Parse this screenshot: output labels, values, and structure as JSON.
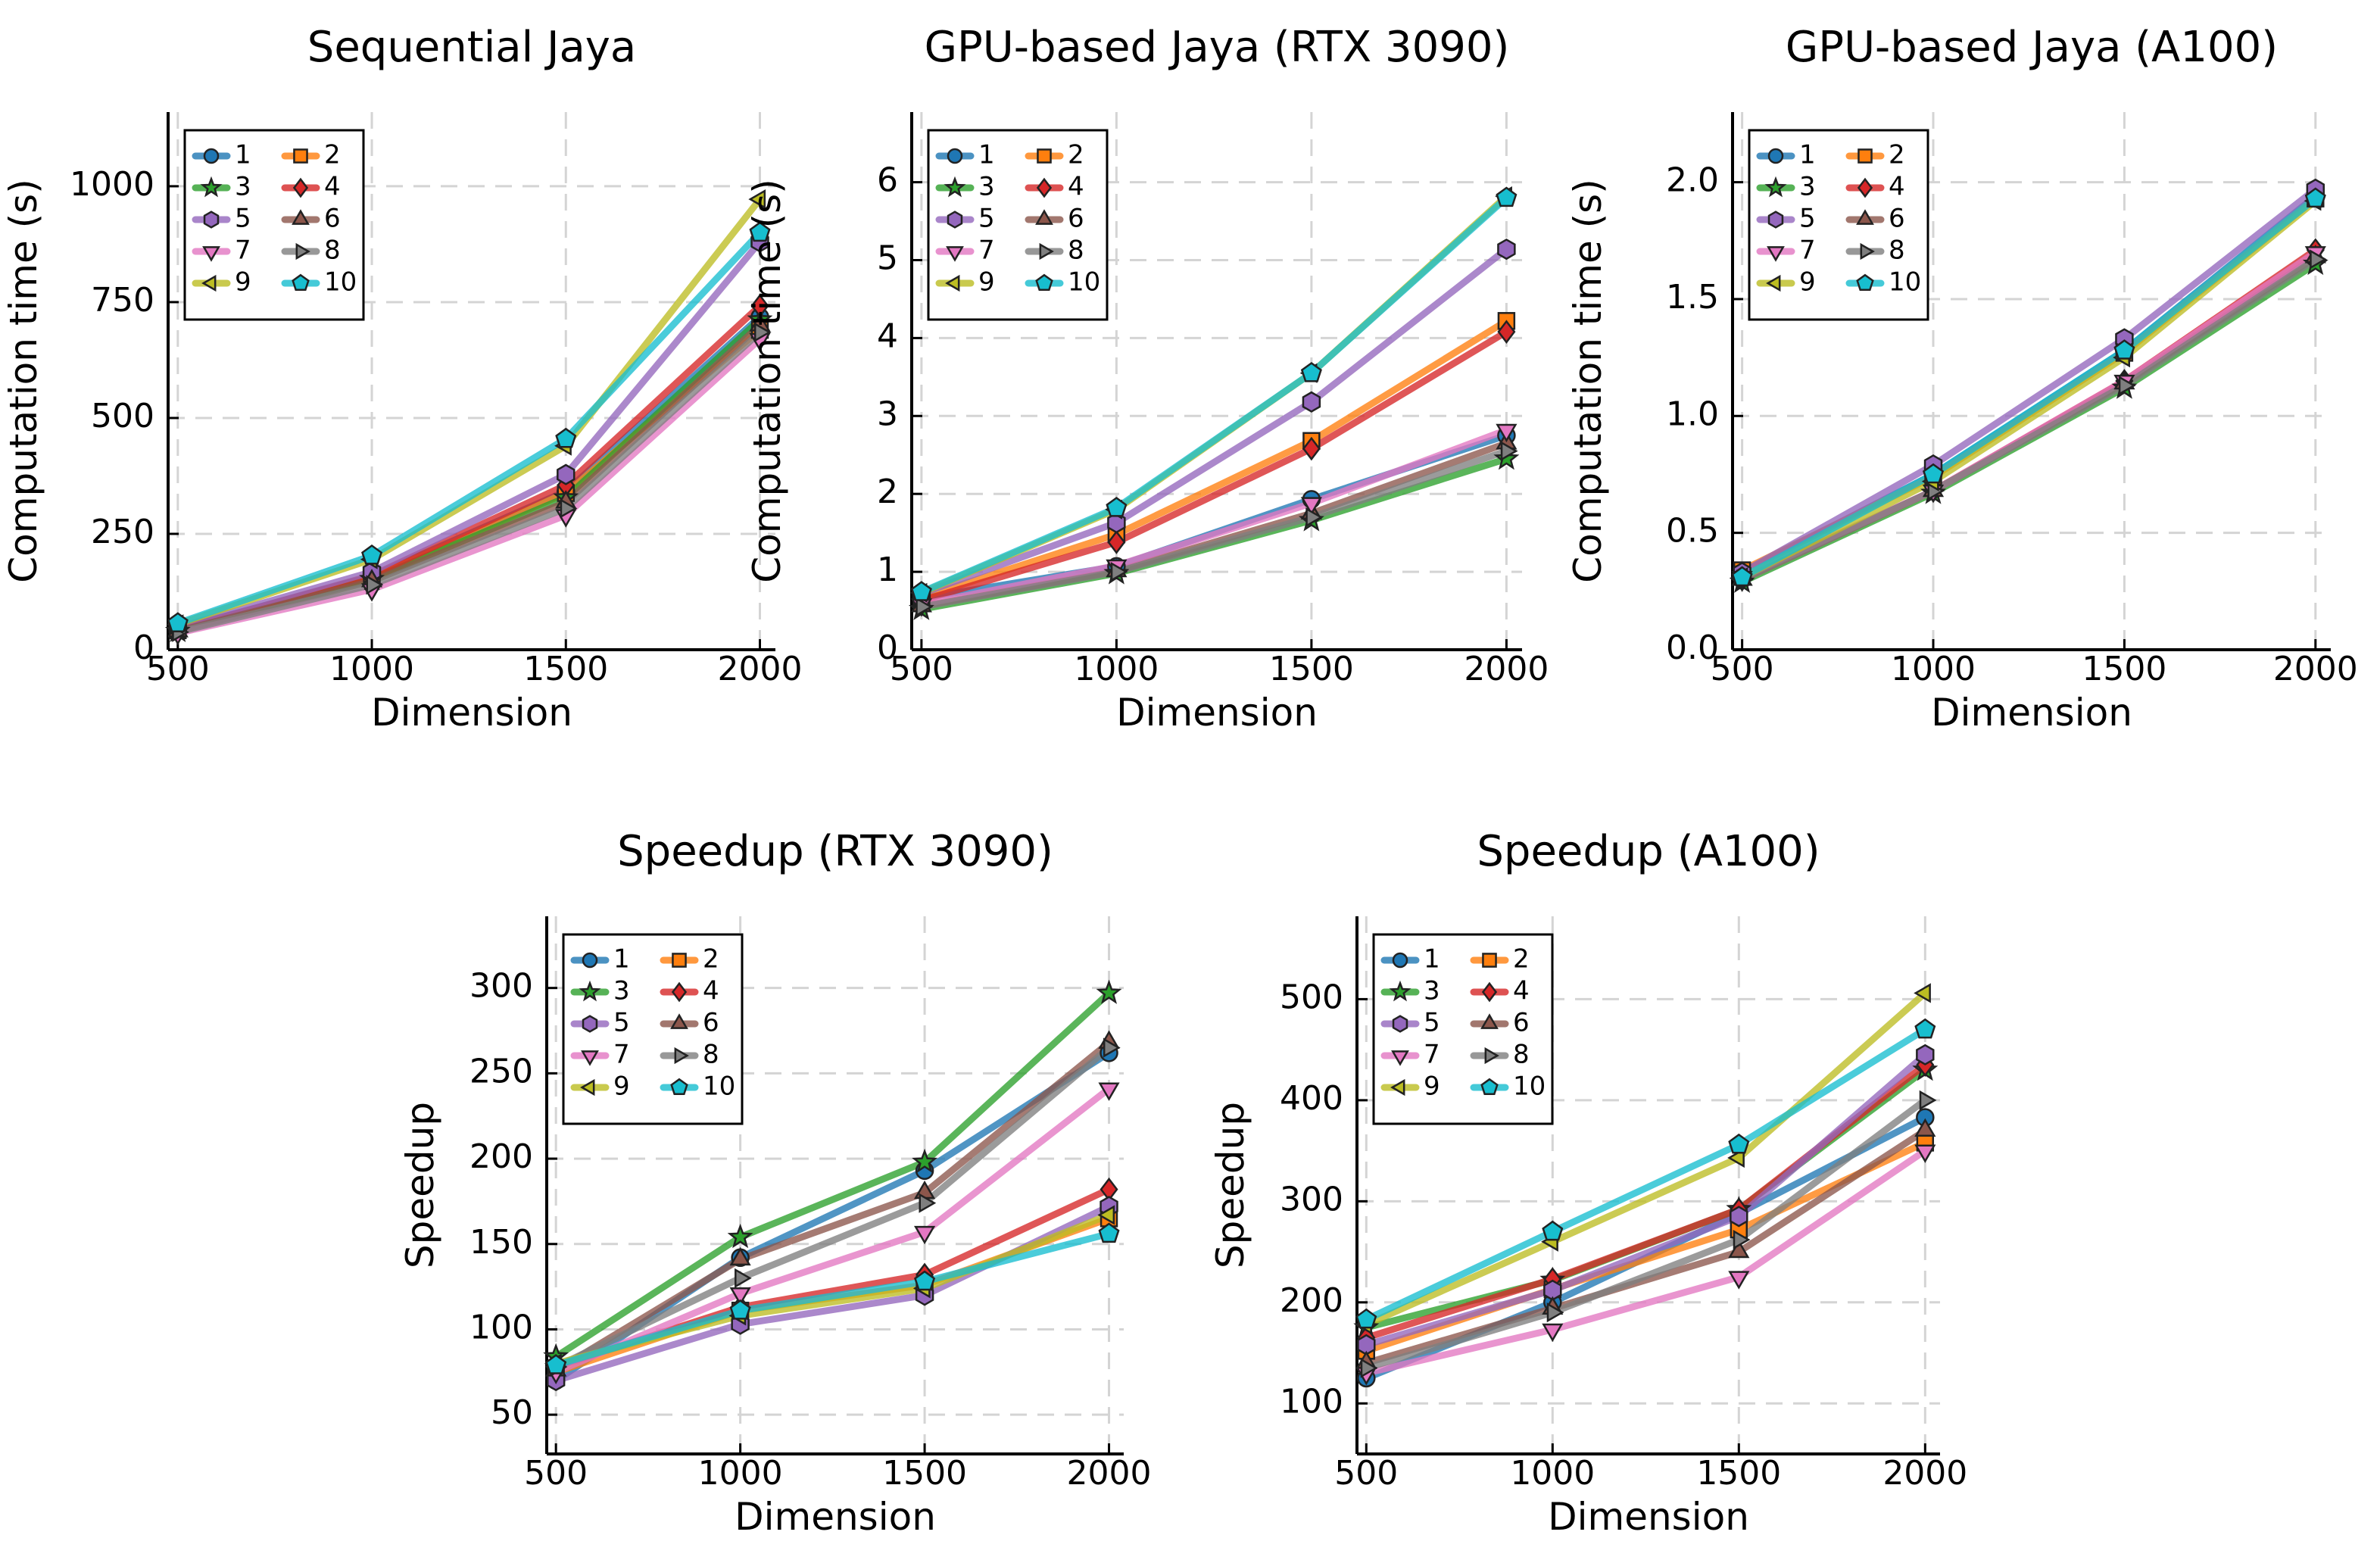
{
  "colors": {
    "1": "#1f77b4",
    "2": "#ff7f0e",
    "3": "#2ca02c",
    "4": "#d62728",
    "5": "#9467bd",
    "6": "#8c564b",
    "7": "#e377c2",
    "8": "#7f7f7f",
    "9": "#bcbd22",
    "10": "#17becf"
  },
  "chart_data": [
    {
      "type": "line",
      "title": "Sequential Jaya",
      "xlabel": "Dimension",
      "ylabel": "Computation time (s)",
      "x": [
        500,
        1000,
        1500,
        2000
      ],
      "xticks": [
        500,
        1000,
        1500,
        2000
      ],
      "xtick_labels": [
        "500",
        "1000",
        "1500",
        "2000"
      ],
      "xlim": [
        475,
        2040
      ],
      "yticks": [
        0,
        250,
        500,
        750,
        1000
      ],
      "ytick_labels": [
        "0",
        "250",
        "500",
        "750",
        "1000"
      ],
      "ylim": [
        0,
        1160
      ],
      "legend": "top-left",
      "series": [
        {
          "name": "1",
          "marker": "circle",
          "values": [
            45,
            158,
            342,
            718
          ]
        },
        {
          "name": "2",
          "marker": "square",
          "values": [
            42,
            155,
            338,
            690
          ]
        },
        {
          "name": "3",
          "marker": "star",
          "values": [
            40,
            152,
            328,
            712
          ]
        },
        {
          "name": "4",
          "marker": "diamond",
          "values": [
            43,
            160,
            355,
            742
          ]
        },
        {
          "name": "5",
          "marker": "hexagon",
          "values": [
            48,
            168,
            378,
            880
          ]
        },
        {
          "name": "6",
          "marker": "triangle-up",
          "values": [
            40,
            148,
            318,
            700
          ]
        },
        {
          "name": "7",
          "marker": "triangle-down",
          "values": [
            36,
            130,
            290,
            670
          ]
        },
        {
          "name": "8",
          "marker": "triangle-right",
          "values": [
            38,
            140,
            305,
            685
          ]
        },
        {
          "name": "9",
          "marker": "triangle-left",
          "values": [
            55,
            195,
            440,
            972
          ]
        },
        {
          "name": "10",
          "marker": "pentagon",
          "values": [
            57,
            203,
            455,
            900
          ]
        }
      ]
    },
    {
      "type": "line",
      "title": "GPU-based Jaya (RTX 3090)",
      "xlabel": "Dimension",
      "ylabel": "Computation time (s)",
      "x": [
        500,
        1000,
        1500,
        2000
      ],
      "xticks": [
        500,
        1000,
        1500,
        2000
      ],
      "xtick_labels": [
        "500",
        "1000",
        "1500",
        "2000"
      ],
      "xlim": [
        475,
        2040
      ],
      "yticks": [
        0,
        1,
        2,
        3,
        4,
        5,
        6
      ],
      "ytick_labels": [
        "0",
        "1",
        "2",
        "3",
        "4",
        "5",
        "6"
      ],
      "ylim": [
        0,
        6.9
      ],
      "legend": "top-left",
      "series": [
        {
          "name": "1",
          "marker": "circle",
          "values": [
            0.66,
            1.07,
            1.93,
            2.75
          ]
        },
        {
          "name": "2",
          "marker": "square",
          "values": [
            0.67,
            1.48,
            2.68,
            4.22
          ]
        },
        {
          "name": "3",
          "marker": "star",
          "values": [
            0.52,
            0.98,
            1.66,
            2.45
          ]
        },
        {
          "name": "4",
          "marker": "diamond",
          "values": [
            0.63,
            1.38,
            2.58,
            4.08
          ]
        },
        {
          "name": "5",
          "marker": "hexagon",
          "values": [
            0.72,
            1.63,
            3.18,
            5.14
          ]
        },
        {
          "name": "6",
          "marker": "triangle-up",
          "values": [
            0.56,
            1.01,
            1.75,
            2.65
          ]
        },
        {
          "name": "7",
          "marker": "triangle-down",
          "values": [
            0.58,
            1.08,
            1.88,
            2.82
          ]
        },
        {
          "name": "8",
          "marker": "triangle-right",
          "values": [
            0.55,
            1.0,
            1.7,
            2.55
          ]
        },
        {
          "name": "9",
          "marker": "triangle-left",
          "values": [
            0.73,
            1.8,
            3.55,
            5.82
          ]
        },
        {
          "name": "10",
          "marker": "pentagon",
          "values": [
            0.74,
            1.82,
            3.55,
            5.8
          ]
        }
      ]
    },
    {
      "type": "line",
      "title": "GPU-based Jaya (A100)",
      "xlabel": "Dimension",
      "ylabel": "Computation time (s)",
      "x": [
        500,
        1000,
        1500,
        2000
      ],
      "xticks": [
        500,
        1000,
        1500,
        2000
      ],
      "xtick_labels": [
        "500",
        "1000",
        "1500",
        "2000"
      ],
      "xlim": [
        475,
        2040
      ],
      "yticks": [
        0,
        0.5,
        1.0,
        1.5,
        2.0
      ],
      "ytick_labels": [
        "0.0",
        "0.5",
        "1.0",
        "1.5",
        "2.0"
      ],
      "ylim": [
        0,
        2.3
      ],
      "legend": "top-left",
      "series": [
        {
          "name": "1",
          "marker": "circle",
          "values": [
            0.33,
            0.75,
            1.28,
            1.94
          ]
        },
        {
          "name": "2",
          "marker": "square",
          "values": [
            0.34,
            0.74,
            1.27,
            1.93
          ]
        },
        {
          "name": "3",
          "marker": "star",
          "values": [
            0.29,
            0.67,
            1.12,
            1.65
          ]
        },
        {
          "name": "4",
          "marker": "diamond",
          "values": [
            0.3,
            0.68,
            1.15,
            1.71
          ]
        },
        {
          "name": "5",
          "marker": "hexagon",
          "values": [
            0.33,
            0.79,
            1.33,
            1.97
          ]
        },
        {
          "name": "6",
          "marker": "triangle-up",
          "values": [
            0.3,
            0.68,
            1.14,
            1.68
          ]
        },
        {
          "name": "7",
          "marker": "triangle-down",
          "values": [
            0.31,
            0.68,
            1.15,
            1.7
          ]
        },
        {
          "name": "8",
          "marker": "triangle-right",
          "values": [
            0.3,
            0.68,
            1.13,
            1.67
          ]
        },
        {
          "name": "9",
          "marker": "triangle-left",
          "values": [
            0.31,
            0.72,
            1.25,
            1.92
          ]
        },
        {
          "name": "10",
          "marker": "pentagon",
          "values": [
            0.31,
            0.75,
            1.28,
            1.93
          ]
        }
      ]
    },
    {
      "type": "line",
      "title": "Speedup (RTX 3090)",
      "xlabel": "Dimension",
      "ylabel": "Speedup",
      "x": [
        500,
        1000,
        1500,
        2000
      ],
      "xticks": [
        500,
        1000,
        1500,
        2000
      ],
      "xtick_labels": [
        "500",
        "1000",
        "1500",
        "2000"
      ],
      "xlim": [
        475,
        2040
      ],
      "yticks": [
        50,
        100,
        150,
        200,
        250,
        300
      ],
      "ytick_labels": [
        "50",
        "100",
        "150",
        "200",
        "250",
        "300"
      ],
      "ylim": [
        27,
        342
      ],
      "legend": "top-left",
      "series": [
        {
          "name": "1",
          "marker": "circle",
          "values": [
            70,
            142,
            193,
            262
          ]
        },
        {
          "name": "2",
          "marker": "square",
          "values": [
            75,
            111,
            126,
            165
          ]
        },
        {
          "name": "3",
          "marker": "star",
          "values": [
            84,
            154,
            198,
            297
          ]
        },
        {
          "name": "4",
          "marker": "diamond",
          "values": [
            78,
            113,
            132,
            182
          ]
        },
        {
          "name": "5",
          "marker": "hexagon",
          "values": [
            70,
            103,
            120,
            172
          ]
        },
        {
          "name": "6",
          "marker": "triangle-up",
          "values": [
            76,
            141,
            180,
            268
          ]
        },
        {
          "name": "7",
          "marker": "triangle-down",
          "values": [
            75,
            121,
            157,
            241
          ]
        },
        {
          "name": "8",
          "marker": "triangle-right",
          "values": [
            78,
            130,
            174,
            265
          ]
        },
        {
          "name": "9",
          "marker": "triangle-left",
          "values": [
            80,
            108,
            124,
            167
          ]
        },
        {
          "name": "10",
          "marker": "pentagon",
          "values": [
            79,
            111,
            128,
            156
          ]
        }
      ]
    },
    {
      "type": "line",
      "title": "Speedup (A100)",
      "xlabel": "Dimension",
      "ylabel": "Speedup",
      "x": [
        500,
        1000,
        1500,
        2000
      ],
      "xticks": [
        500,
        1000,
        1500,
        2000
      ],
      "xtick_labels": [
        "500",
        "1000",
        "1500",
        "2000"
      ],
      "xlim": [
        475,
        2040
      ],
      "yticks": [
        100,
        200,
        300,
        400,
        500
      ],
      "ytick_labels": [
        "100",
        "200",
        "300",
        "400",
        "500"
      ],
      "ylim": [
        50,
        582
      ],
      "legend": "top-left",
      "series": [
        {
          "name": "1",
          "marker": "circle",
          "values": [
            125,
            200,
            288,
            383
          ]
        },
        {
          "name": "2",
          "marker": "square",
          "values": [
            152,
            213,
            272,
            358
          ]
        },
        {
          "name": "3",
          "marker": "star",
          "values": [
            175,
            222,
            292,
            430
          ]
        },
        {
          "name": "4",
          "marker": "diamond",
          "values": [
            165,
            223,
            292,
            435
          ]
        },
        {
          "name": "5",
          "marker": "hexagon",
          "values": [
            158,
            212,
            285,
            445
          ]
        },
        {
          "name": "6",
          "marker": "triangle-up",
          "values": [
            140,
            194,
            250,
            370
          ]
        },
        {
          "name": "7",
          "marker": "triangle-down",
          "values": [
            130,
            173,
            225,
            350
          ]
        },
        {
          "name": "8",
          "marker": "triangle-right",
          "values": [
            135,
            190,
            262,
            400
          ]
        },
        {
          "name": "9",
          "marker": "triangle-left",
          "values": [
            178,
            260,
            343,
            506
          ]
        },
        {
          "name": "10",
          "marker": "pentagon",
          "values": [
            183,
            270,
            356,
            470
          ]
        }
      ]
    }
  ]
}
